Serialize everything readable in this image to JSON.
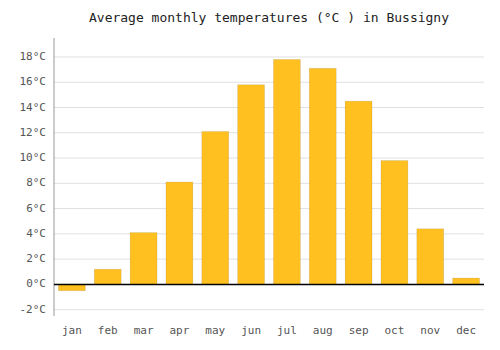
{
  "chart_data": {
    "type": "bar",
    "title": "Average monthly temperatures (°C ) in Bussigny",
    "categories": [
      "jan",
      "feb",
      "mar",
      "apr",
      "may",
      "jun",
      "jul",
      "aug",
      "sep",
      "oct",
      "nov",
      "dec"
    ],
    "values": [
      -0.5,
      1.2,
      4.1,
      8.1,
      12.1,
      15.8,
      17.8,
      17.1,
      14.5,
      9.8,
      4.4,
      0.5
    ],
    "color": "#FFC020",
    "ylim": [
      -2.5,
      19.5
    ],
    "yticks": [
      {
        "value": -2,
        "label": "-2°C"
      },
      {
        "value": 0,
        "label": "0°C"
      },
      {
        "value": 2,
        "label": "2°C"
      },
      {
        "value": 4,
        "label": "4°C"
      },
      {
        "value": 6,
        "label": "6°C"
      },
      {
        "value": 8,
        "label": "8°C"
      },
      {
        "value": 10,
        "label": "10°C"
      },
      {
        "value": 12,
        "label": "12°C"
      },
      {
        "value": 14,
        "label": "14°C"
      },
      {
        "value": 16,
        "label": "16°C"
      },
      {
        "value": 18,
        "label": "18°C"
      }
    ],
    "grid": true
  }
}
